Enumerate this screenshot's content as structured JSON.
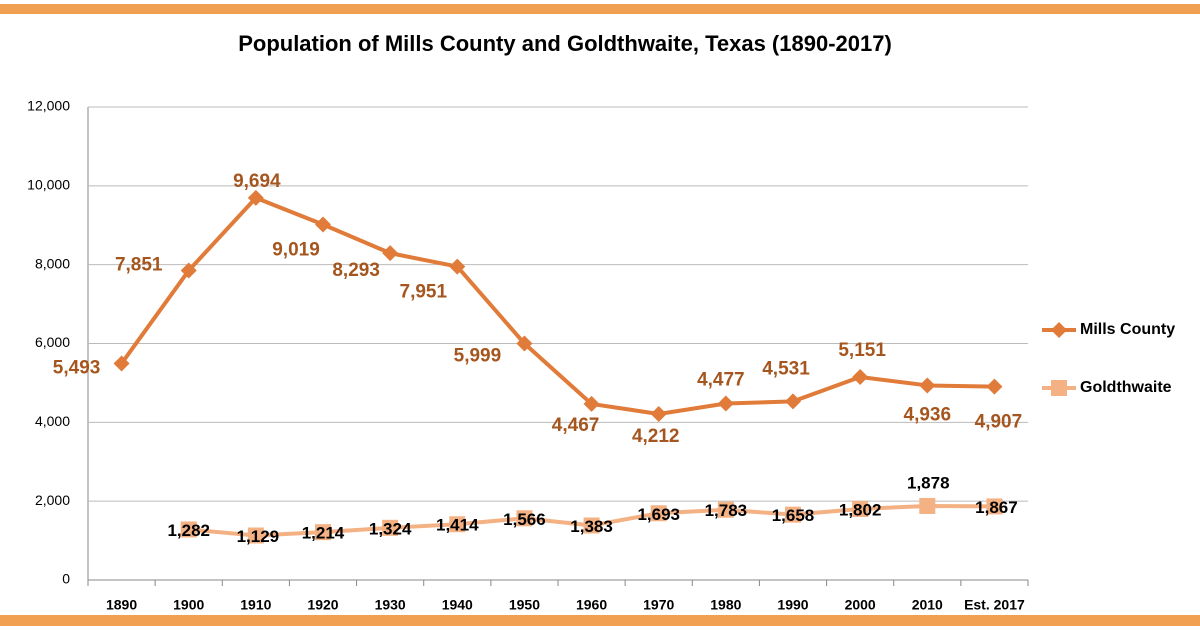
{
  "chart_data": {
    "type": "line",
    "title": "Population of Mills County and Goldthwaite, Texas (1890-2017)",
    "categories": [
      "1890",
      "1900",
      "1910",
      "1920",
      "1930",
      "1940",
      "1950",
      "1960",
      "1970",
      "1980",
      "1990",
      "2000",
      "2010",
      "Est. 2017"
    ],
    "series": [
      {
        "name": "Mills County",
        "color": "#e07b39",
        "label_color": "#a5561f",
        "marker": "diamond",
        "values": [
          5493,
          7851,
          9694,
          9019,
          8293,
          7951,
          5999,
          4467,
          4212,
          4477,
          4531,
          5151,
          4936,
          4907
        ],
        "value_labels": [
          "5,493",
          "7,851",
          "9,694",
          "9,019",
          "8,293",
          "7,951",
          "5,999",
          "4,467",
          "4,212",
          "4,477",
          "4,531",
          "5,151",
          "4,936",
          "4,907"
        ]
      },
      {
        "name": "Goldthwaite",
        "color": "#f4b183",
        "label_color": "#000000",
        "marker": "square",
        "values": [
          null,
          1282,
          1129,
          1214,
          1324,
          1414,
          1566,
          1383,
          1693,
          1783,
          1658,
          1802,
          1878,
          1867
        ],
        "value_labels": [
          null,
          "1,282",
          "1,129",
          "1,214",
          "1,324",
          "1,414",
          "1,566",
          "1,383",
          "1,693",
          "1,783",
          "1,658",
          "1,802",
          "1,878",
          "1,867"
        ]
      }
    ],
    "ylim": [
      0,
      12000
    ],
    "yticks": [
      0,
      {
        "value": 2000,
        "label": "2,000"
      },
      {
        "value": 4000,
        "label": "4,000"
      },
      {
        "value": 6000,
        "label": "6,000"
      },
      {
        "value": 8000,
        "label": "8,000"
      },
      {
        "value": 10000,
        "label": "10,000"
      },
      {
        "value": 12000,
        "label": "12,000"
      }
    ],
    "grid": true,
    "legend": "right"
  }
}
